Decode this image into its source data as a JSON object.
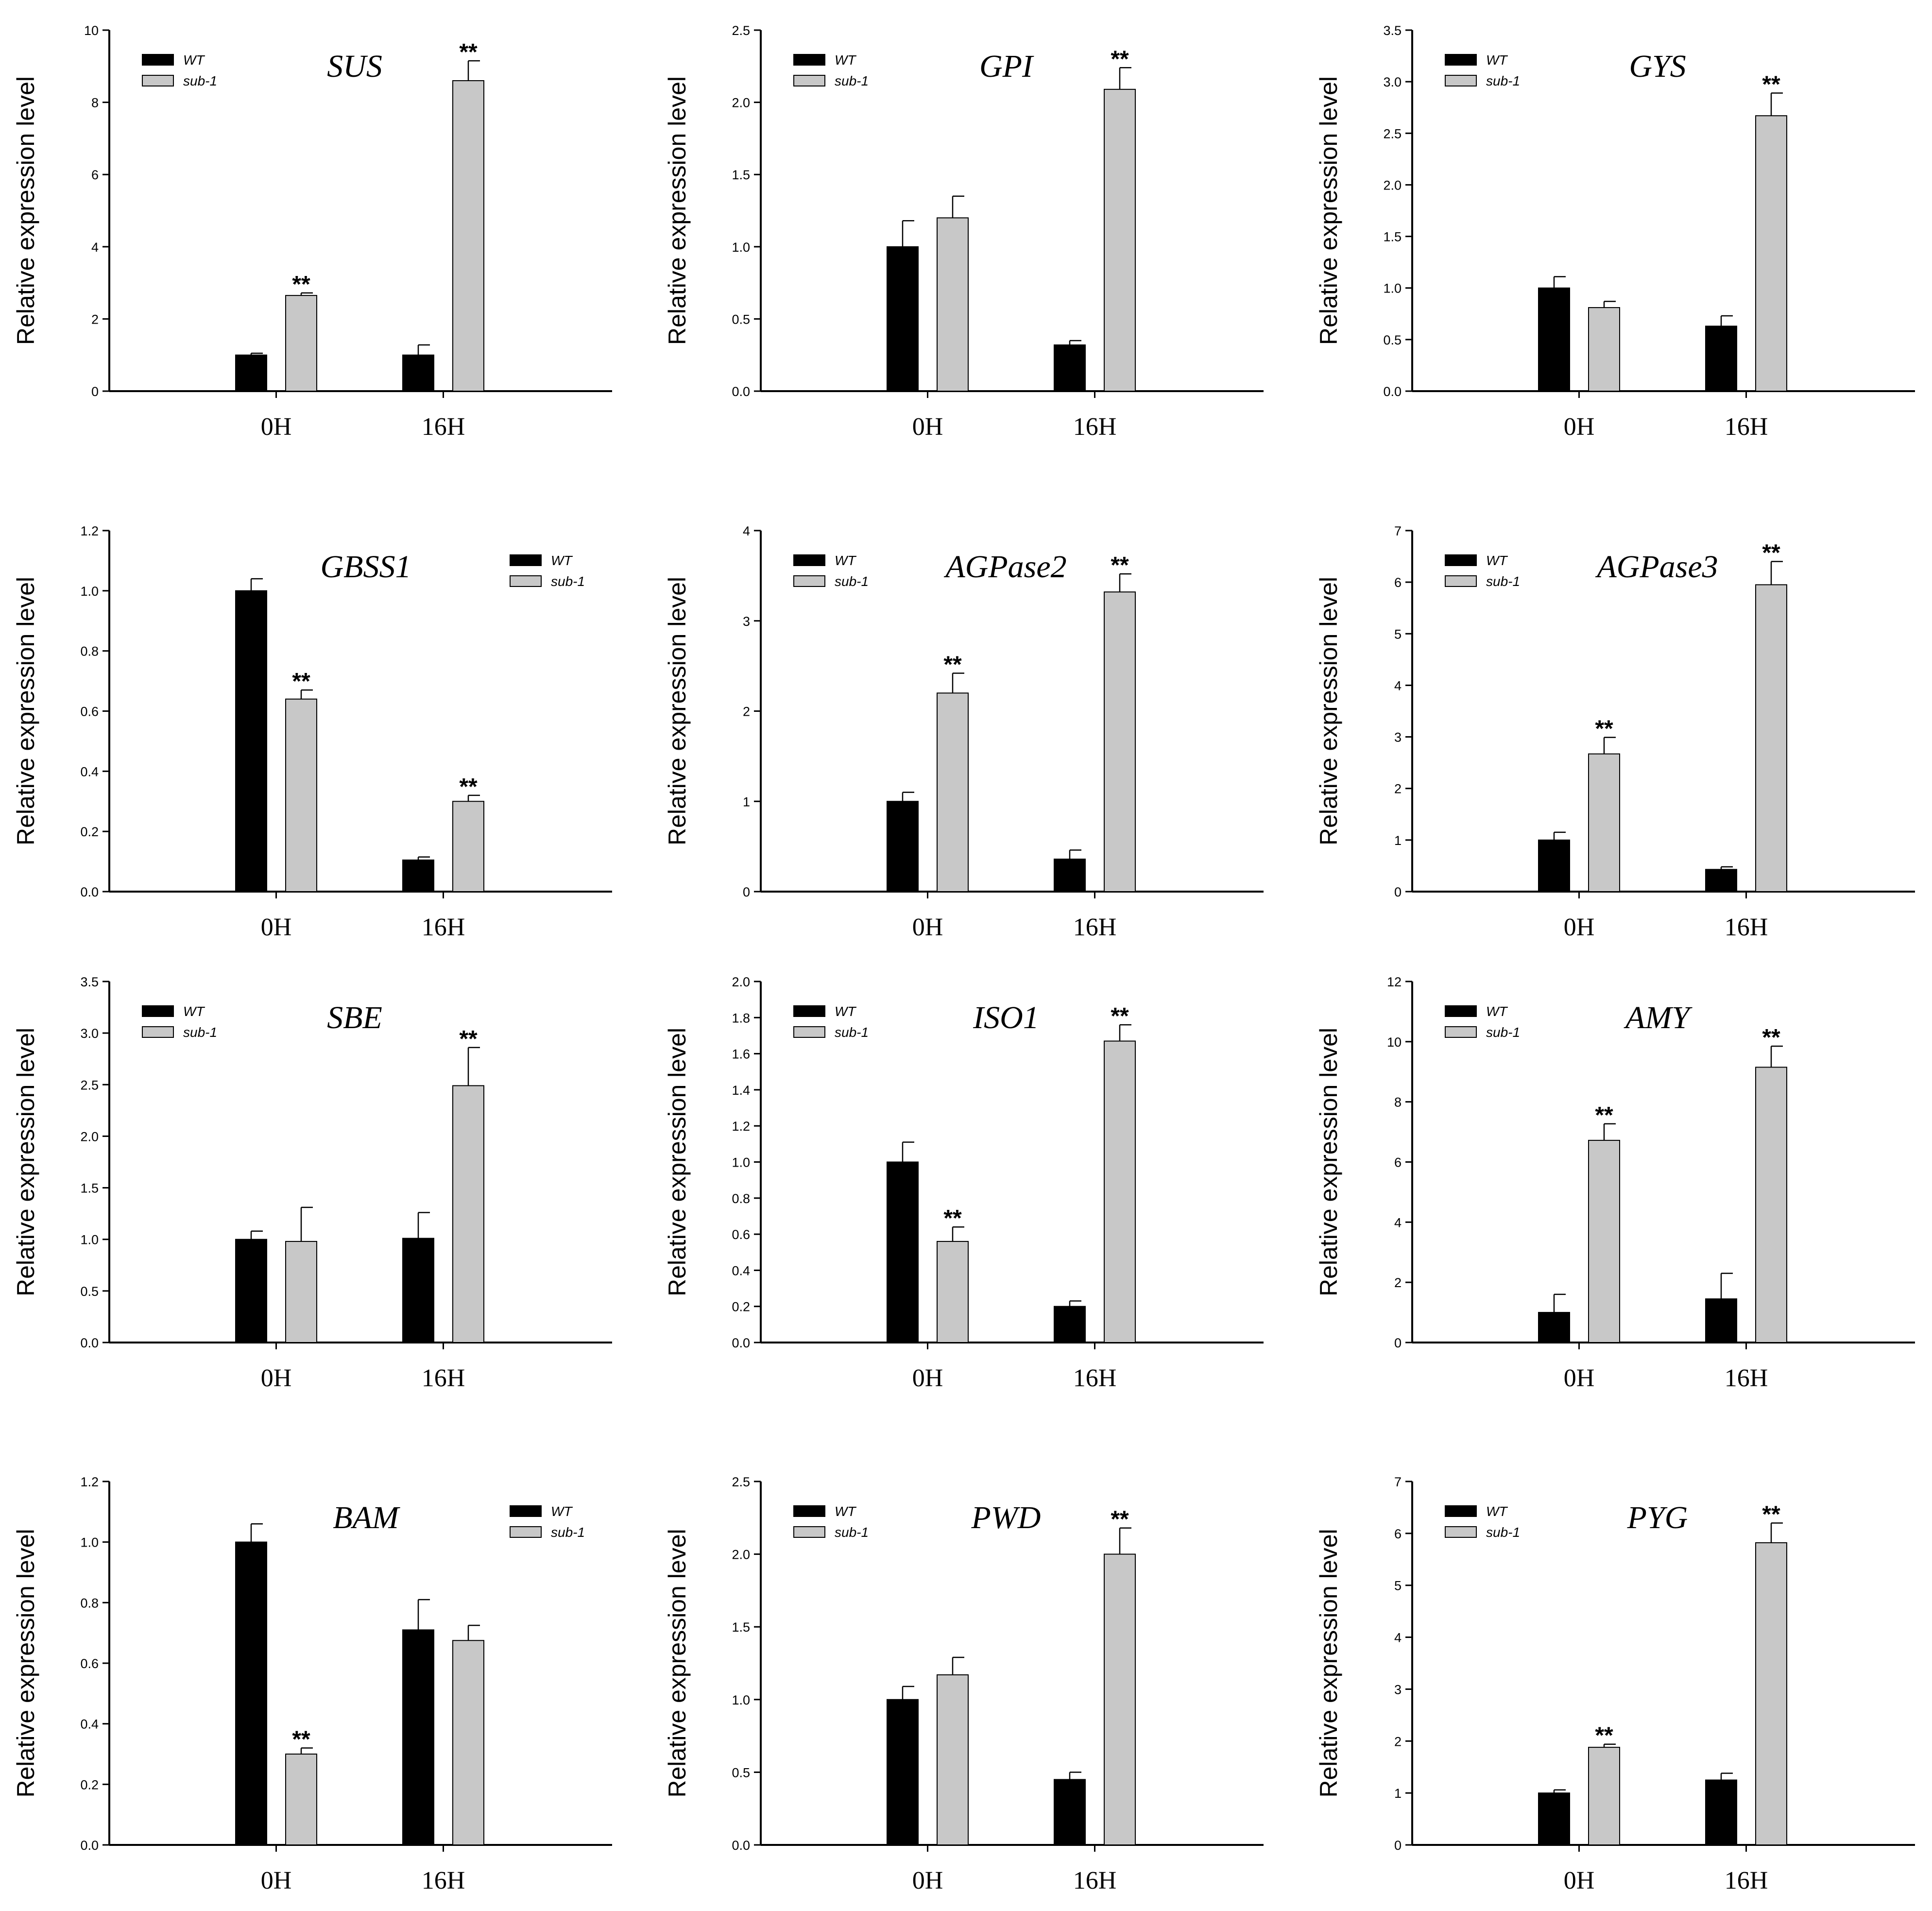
{
  "figure": {
    "legend_labels": [
      "WT",
      "sub-1"
    ],
    "series_colors": {
      "WT": "#000000",
      "sub-1": "#c8c8c8"
    }
  },
  "chart_data": [
    {
      "type": "bar",
      "title": "SUS",
      "xlabel": "",
      "ylabel": "Relative expression level",
      "categories": [
        "0H",
        "16H"
      ],
      "ylim": [
        0,
        10
      ],
      "yticks": [
        "0",
        "2",
        "4",
        "6",
        "8",
        "10"
      ],
      "legend_position": "top-left",
      "series": [
        {
          "name": "WT",
          "values": [
            1.0,
            1.0
          ],
          "errors": [
            0.05,
            0.28
          ]
        },
        {
          "name": "sub-1",
          "values": [
            2.65,
            8.6
          ],
          "errors": [
            0.07,
            0.55
          ]
        }
      ],
      "significance": [
        "**",
        "**"
      ]
    },
    {
      "type": "bar",
      "title": "GPI",
      "xlabel": "",
      "ylabel": "Relative expression level",
      "categories": [
        "0H",
        "16H"
      ],
      "ylim": [
        0,
        2.5
      ],
      "yticks": [
        "0.0",
        "0.5",
        "1.0",
        "1.5",
        "2.0",
        "2.5"
      ],
      "legend_position": "top-left",
      "series": [
        {
          "name": "WT",
          "values": [
            1.0,
            0.32
          ],
          "errors": [
            0.18,
            0.03
          ]
        },
        {
          "name": "sub-1",
          "values": [
            1.2,
            2.09
          ],
          "errors": [
            0.15,
            0.15
          ]
        }
      ],
      "significance": [
        "",
        "**"
      ]
    },
    {
      "type": "bar",
      "title": "GYS",
      "xlabel": "",
      "ylabel": "Relative expression level",
      "categories": [
        "0H",
        "16H"
      ],
      "ylim": [
        0,
        3.5
      ],
      "yticks": [
        "0.0",
        "0.5",
        "1.0",
        "1.5",
        "2.0",
        "2.5",
        "3.0",
        "3.5"
      ],
      "legend_position": "top-left",
      "series": [
        {
          "name": "WT",
          "values": [
            1.0,
            0.63
          ],
          "errors": [
            0.11,
            0.1
          ]
        },
        {
          "name": "sub-1",
          "values": [
            0.81,
            2.67
          ],
          "errors": [
            0.06,
            0.22
          ]
        }
      ],
      "significance": [
        "",
        "**"
      ]
    },
    {
      "type": "bar",
      "title": "GBSS1",
      "xlabel": "",
      "ylabel": "Relative expression level",
      "categories": [
        "0H",
        "16H"
      ],
      "ylim": [
        0,
        1.2
      ],
      "yticks": [
        "0.0",
        "0.2",
        "0.4",
        "0.6",
        "0.8",
        "1.0",
        "1.2"
      ],
      "legend_position": "top-right",
      "series": [
        {
          "name": "WT",
          "values": [
            1.0,
            0.105
          ],
          "errors": [
            0.04,
            0.01
          ]
        },
        {
          "name": "sub-1",
          "values": [
            0.64,
            0.3
          ],
          "errors": [
            0.03,
            0.02
          ]
        }
      ],
      "significance": [
        "**",
        "**"
      ]
    },
    {
      "type": "bar",
      "title": "AGPase2",
      "xlabel": "",
      "ylabel": "Relative expression level",
      "categories": [
        "0H",
        "16H"
      ],
      "ylim": [
        0,
        4
      ],
      "yticks": [
        "0",
        "1",
        "2",
        "3",
        "4"
      ],
      "legend_position": "top-left",
      "series": [
        {
          "name": "WT",
          "values": [
            1.0,
            0.36
          ],
          "errors": [
            0.1,
            0.1
          ]
        },
        {
          "name": "sub-1",
          "values": [
            2.2,
            3.32
          ],
          "errors": [
            0.22,
            0.2
          ]
        }
      ],
      "significance": [
        "**",
        "**"
      ]
    },
    {
      "type": "bar",
      "title": "AGPase3",
      "xlabel": "",
      "ylabel": "Relative expression level",
      "categories": [
        "0H",
        "16H"
      ],
      "ylim": [
        0,
        7
      ],
      "yticks": [
        "0",
        "1",
        "2",
        "3",
        "4",
        "5",
        "6",
        "7"
      ],
      "legend_position": "top-left",
      "series": [
        {
          "name": "WT",
          "values": [
            1.0,
            0.43
          ],
          "errors": [
            0.15,
            0.05
          ]
        },
        {
          "name": "sub-1",
          "values": [
            2.67,
            5.95
          ],
          "errors": [
            0.32,
            0.45
          ]
        }
      ],
      "significance": [
        "**",
        "**"
      ]
    },
    {
      "type": "bar",
      "title": "SBE",
      "xlabel": "",
      "ylabel": "Relative expression level",
      "categories": [
        "0H",
        "16H"
      ],
      "ylim": [
        0,
        3.5
      ],
      "yticks": [
        "0.0",
        "0.5",
        "1.0",
        "1.5",
        "2.0",
        "2.5",
        "3.0",
        "3.5"
      ],
      "legend_position": "top-left",
      "series": [
        {
          "name": "WT",
          "values": [
            1.0,
            1.01
          ],
          "errors": [
            0.08,
            0.25
          ]
        },
        {
          "name": "sub-1",
          "values": [
            0.98,
            2.49
          ],
          "errors": [
            0.33,
            0.37
          ]
        }
      ],
      "significance": [
        "",
        "**"
      ]
    },
    {
      "type": "bar",
      "title": "ISO1",
      "xlabel": "",
      "ylabel": "Relative expression level",
      "categories": [
        "0H",
        "16H"
      ],
      "ylim": [
        0,
        2.0
      ],
      "yticks": [
        "0.0",
        "0.2",
        "0.4",
        "0.6",
        "0.8",
        "1.0",
        "1.2",
        "1.4",
        "1.6",
        "1.8",
        "2.0"
      ],
      "legend_position": "top-left",
      "series": [
        {
          "name": "WT",
          "values": [
            1.0,
            0.2
          ],
          "errors": [
            0.11,
            0.03
          ]
        },
        {
          "name": "sub-1",
          "values": [
            0.56,
            1.67
          ],
          "errors": [
            0.08,
            0.09
          ]
        }
      ],
      "significance": [
        "**",
        "**"
      ]
    },
    {
      "type": "bar",
      "title": "AMY",
      "xlabel": "",
      "ylabel": "Relative expression level",
      "categories": [
        "0H",
        "16H"
      ],
      "ylim": [
        0,
        12
      ],
      "yticks": [
        "0",
        "2",
        "4",
        "6",
        "8",
        "10",
        "12"
      ],
      "legend_position": "top-left",
      "series": [
        {
          "name": "WT",
          "values": [
            1.0,
            1.45
          ],
          "errors": [
            0.6,
            0.85
          ]
        },
        {
          "name": "sub-1",
          "values": [
            6.72,
            9.15
          ],
          "errors": [
            0.55,
            0.7
          ]
        }
      ],
      "significance": [
        "**",
        "**"
      ]
    },
    {
      "type": "bar",
      "title": "BAM",
      "xlabel": "",
      "ylabel": "Relative expression level",
      "categories": [
        "0H",
        "16H"
      ],
      "ylim": [
        0,
        1.2
      ],
      "yticks": [
        "0.0",
        "0.2",
        "0.4",
        "0.6",
        "0.8",
        "1.0",
        "1.2"
      ],
      "legend_position": "top-right",
      "series": [
        {
          "name": "WT",
          "values": [
            1.0,
            0.71
          ],
          "errors": [
            0.06,
            0.1
          ]
        },
        {
          "name": "sub-1",
          "values": [
            0.3,
            0.675
          ],
          "errors": [
            0.02,
            0.05
          ]
        }
      ],
      "significance": [
        "**",
        ""
      ]
    },
    {
      "type": "bar",
      "title": "PWD",
      "xlabel": "",
      "ylabel": "Relative expression level",
      "categories": [
        "0H",
        "16H"
      ],
      "ylim": [
        0,
        2.5
      ],
      "yticks": [
        "0.0",
        "0.5",
        "1.0",
        "1.5",
        "2.0",
        "2.5"
      ],
      "legend_position": "top-left",
      "series": [
        {
          "name": "WT",
          "values": [
            1.0,
            0.45
          ],
          "errors": [
            0.09,
            0.05
          ]
        },
        {
          "name": "sub-1",
          "values": [
            1.17,
            2.0
          ],
          "errors": [
            0.12,
            0.18
          ]
        }
      ],
      "significance": [
        "",
        "**"
      ]
    },
    {
      "type": "bar",
      "title": "PYG",
      "xlabel": "",
      "ylabel": "Relative expression level",
      "categories": [
        "0H",
        "16H"
      ],
      "ylim": [
        0,
        7
      ],
      "yticks": [
        "0",
        "1",
        "2",
        "3",
        "4",
        "5",
        "6",
        "7"
      ],
      "legend_position": "top-left",
      "series": [
        {
          "name": "WT",
          "values": [
            1.0,
            1.25
          ],
          "errors": [
            0.06,
            0.13
          ]
        },
        {
          "name": "sub-1",
          "values": [
            1.88,
            5.82
          ],
          "errors": [
            0.06,
            0.38
          ]
        }
      ],
      "significance": [
        "**",
        "**"
      ]
    }
  ]
}
